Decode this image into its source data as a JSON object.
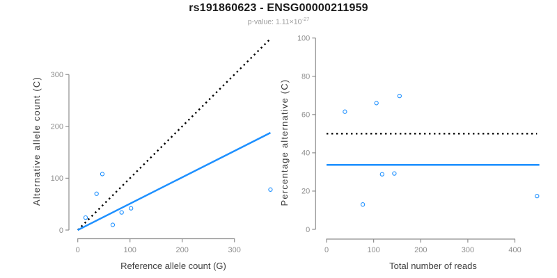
{
  "header": {
    "title": "rs191860623 - ENSG00000211959",
    "pvalue_prefix": "p-value: 1.11×10",
    "pvalue_exponent": "-27"
  },
  "colors": {
    "accent_blue": "#1E90FF",
    "dotted_line": "#000000",
    "axis": "#8e8e8e",
    "tick_label": "#8e8e8e",
    "axis_title": "#3d3d3d",
    "title": "#1a1a1a",
    "subtitle": "#9a9a9a",
    "background": "#ffffff"
  },
  "chart_data": [
    {
      "type": "scatter",
      "panel": "left",
      "xlabel": "Reference allele count (G)",
      "ylabel": "Alternative allele count (C)",
      "xticks": [
        0,
        100,
        200,
        300
      ],
      "yticks": [
        0,
        100,
        200,
        300
      ],
      "xlim": [
        0,
        372
      ],
      "ylim": [
        0,
        372
      ],
      "grid": false,
      "legend": "none",
      "points": [
        [
          15,
          24
        ],
        [
          36,
          70
        ],
        [
          47,
          108
        ],
        [
          67,
          10
        ],
        [
          84,
          34
        ],
        [
          102,
          42
        ],
        [
          369,
          78
        ]
      ],
      "lines": [
        {
          "name": "identity-line",
          "style": "dotted",
          "color": "#000000",
          "width": 2.4,
          "from": [
            0,
            0
          ],
          "to": [
            368,
            368
          ]
        },
        {
          "name": "regression-line",
          "style": "solid",
          "color": "#1E90FF",
          "width": 2.5,
          "from": [
            0,
            0
          ],
          "to": [
            369,
            187.6
          ]
        }
      ]
    },
    {
      "type": "scatter",
      "panel": "right",
      "xlabel": "Total number of reads",
      "ylabel": "Percentage alternative (C)",
      "xticks": [
        0,
        100,
        200,
        300,
        400
      ],
      "yticks": [
        0,
        20,
        40,
        60,
        80,
        100
      ],
      "xlim": [
        0,
        455
      ],
      "ylim": [
        0,
        100
      ],
      "grid": false,
      "legend": "none",
      "points": [
        [
          39,
          61.5
        ],
        [
          77,
          13
        ],
        [
          106,
          66
        ],
        [
          118,
          28.8
        ],
        [
          144,
          29.2
        ],
        [
          155,
          69.7
        ],
        [
          447,
          17.4
        ]
      ],
      "lines": [
        {
          "name": "fifty-percent-line",
          "style": "dotted",
          "color": "#000000",
          "width": 2.4,
          "from": [
            0,
            50
          ],
          "to": [
            447,
            50
          ]
        },
        {
          "name": "mean-percentage-line",
          "style": "solid",
          "color": "#1E90FF",
          "width": 2.5,
          "from": [
            0,
            33.7
          ],
          "to": [
            452,
            33.7
          ]
        }
      ]
    }
  ]
}
